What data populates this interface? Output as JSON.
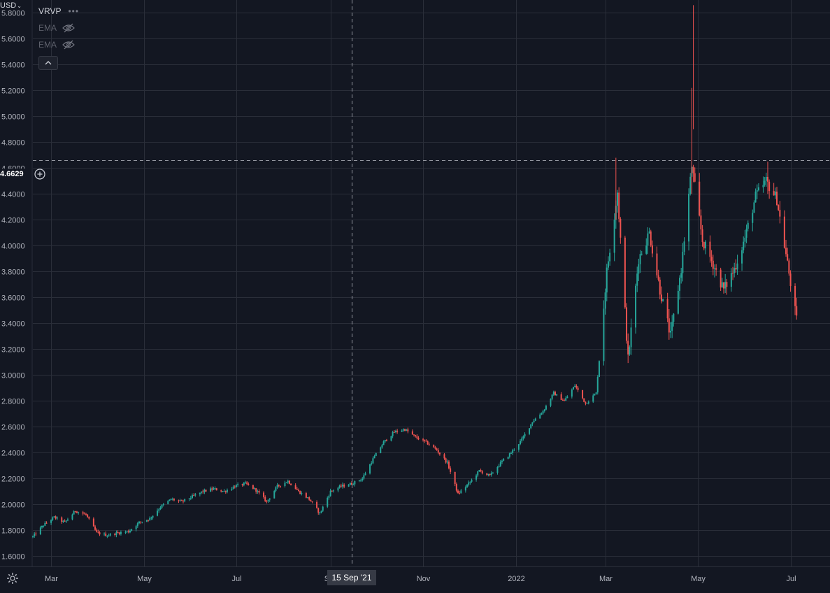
{
  "header": {
    "indicator_title": "VRVP",
    "indicator_menu": "•••",
    "ema_labels": [
      "EMA",
      "EMA"
    ],
    "eye_icon": "eye-hidden-icon",
    "collapse_icon": "chevron-up-icon",
    "currency": "USD"
  },
  "crosshair": {
    "price_label": "4.6629",
    "price_value": 4.6629,
    "date_label": "15 Sep '21",
    "date_value": "2021-09-15"
  },
  "colors": {
    "background": "#131722",
    "grid": "#2a2e39",
    "up": "#26a69a",
    "down": "#ef5350",
    "axis_text": "#b2b5be",
    "crosshair": "#9598a1"
  },
  "chart_data": {
    "type": "candlestick",
    "title": "",
    "xlabel": "",
    "ylabel": "",
    "y_range": [
      1.52,
      5.9
    ],
    "y_ticks": [
      "1.6000",
      "1.8000",
      "2.0000",
      "2.2000",
      "2.4000",
      "2.6000",
      "2.8000",
      "3.0000",
      "3.2000",
      "3.4000",
      "3.6000",
      "3.8000",
      "4.0000",
      "4.2000",
      "4.4000",
      "4.6000",
      "4.8000",
      "5.0000",
      "5.2000",
      "5.4000",
      "5.6000",
      "5.8000"
    ],
    "y_tick_values": [
      1.6,
      1.8,
      2.0,
      2.2,
      2.4,
      2.6,
      2.8,
      3.0,
      3.2,
      3.4,
      3.6,
      3.8,
      4.0,
      4.2,
      4.4,
      4.6,
      4.8,
      5.0,
      5.2,
      5.4,
      5.6,
      5.8
    ],
    "x_range": [
      "2021-02-17",
      "2022-07-27"
    ],
    "x_ticks": [
      {
        "label": "Mar",
        "date": "2021-03-01"
      },
      {
        "label": "May",
        "date": "2021-05-01"
      },
      {
        "label": "Jul",
        "date": "2021-07-01"
      },
      {
        "label": "Sep",
        "date": "2021-09-01"
      },
      {
        "label": "Nov",
        "date": "2021-11-01"
      },
      {
        "label": "2022",
        "date": "2022-01-01"
      },
      {
        "label": "Mar",
        "date": "2022-03-01"
      },
      {
        "label": "May",
        "date": "2022-05-01"
      },
      {
        "label": "Jul",
        "date": "2022-07-01"
      }
    ],
    "grid": true,
    "series_close": [
      [
        "2021-02-17",
        1.75
      ],
      [
        "2021-02-24",
        1.84
      ],
      [
        "2021-03-03",
        1.9
      ],
      [
        "2021-03-10",
        1.86
      ],
      [
        "2021-03-17",
        1.95
      ],
      [
        "2021-03-24",
        1.92
      ],
      [
        "2021-03-31",
        1.78
      ],
      [
        "2021-04-07",
        1.76
      ],
      [
        "2021-04-14",
        1.78
      ],
      [
        "2021-04-21",
        1.79
      ],
      [
        "2021-04-28",
        1.86
      ],
      [
        "2021-05-05",
        1.89
      ],
      [
        "2021-05-12",
        1.98
      ],
      [
        "2021-05-19",
        2.04
      ],
      [
        "2021-05-26",
        2.02
      ],
      [
        "2021-06-02",
        2.06
      ],
      [
        "2021-06-09",
        2.1
      ],
      [
        "2021-06-16",
        2.12
      ],
      [
        "2021-06-23",
        2.1
      ],
      [
        "2021-06-30",
        2.14
      ],
      [
        "2021-07-07",
        2.16
      ],
      [
        "2021-07-14",
        2.11
      ],
      [
        "2021-07-21",
        2.02
      ],
      [
        "2021-07-28",
        2.14
      ],
      [
        "2021-08-04",
        2.18
      ],
      [
        "2021-08-11",
        2.1
      ],
      [
        "2021-08-18",
        2.04
      ],
      [
        "2021-08-25",
        1.93
      ],
      [
        "2021-09-01",
        2.1
      ],
      [
        "2021-09-08",
        2.14
      ],
      [
        "2021-09-15",
        2.16
      ],
      [
        "2021-09-22",
        2.2
      ],
      [
        "2021-09-29",
        2.35
      ],
      [
        "2021-10-06",
        2.48
      ],
      [
        "2021-10-13",
        2.56
      ],
      [
        "2021-10-20",
        2.58
      ],
      [
        "2021-10-27",
        2.52
      ],
      [
        "2021-11-03",
        2.48
      ],
      [
        "2021-11-10",
        2.42
      ],
      [
        "2021-11-17",
        2.32
      ],
      [
        "2021-11-24",
        2.08
      ],
      [
        "2021-12-01",
        2.16
      ],
      [
        "2021-12-08",
        2.26
      ],
      [
        "2021-12-15",
        2.22
      ],
      [
        "2021-12-22",
        2.32
      ],
      [
        "2021-12-29",
        2.4
      ],
      [
        "2022-01-05",
        2.5
      ],
      [
        "2022-01-12",
        2.64
      ],
      [
        "2022-01-19",
        2.72
      ],
      [
        "2022-01-26",
        2.86
      ],
      [
        "2022-02-02",
        2.8
      ],
      [
        "2022-02-09",
        2.92
      ],
      [
        "2022-02-16",
        2.78
      ],
      [
        "2022-02-23",
        2.86
      ],
      [
        "2022-03-02",
        3.8
      ],
      [
        "2022-03-09",
        4.42
      ],
      [
        "2022-03-16",
        3.12
      ],
      [
        "2022-03-23",
        3.9
      ],
      [
        "2022-03-30",
        4.1
      ],
      [
        "2022-04-06",
        3.66
      ],
      [
        "2022-04-13",
        3.3
      ],
      [
        "2022-04-20",
        3.82
      ],
      [
        "2022-04-27",
        4.62
      ],
      [
        "2022-05-04",
        4.04
      ],
      [
        "2022-05-11",
        3.86
      ],
      [
        "2022-05-18",
        3.66
      ],
      [
        "2022-05-25",
        3.82
      ],
      [
        "2022-06-01",
        4.06
      ],
      [
        "2022-06-08",
        4.38
      ],
      [
        "2022-06-15",
        4.5
      ],
      [
        "2022-06-22",
        4.36
      ],
      [
        "2022-06-29",
        3.86
      ],
      [
        "2022-07-05",
        3.42
      ]
    ]
  }
}
